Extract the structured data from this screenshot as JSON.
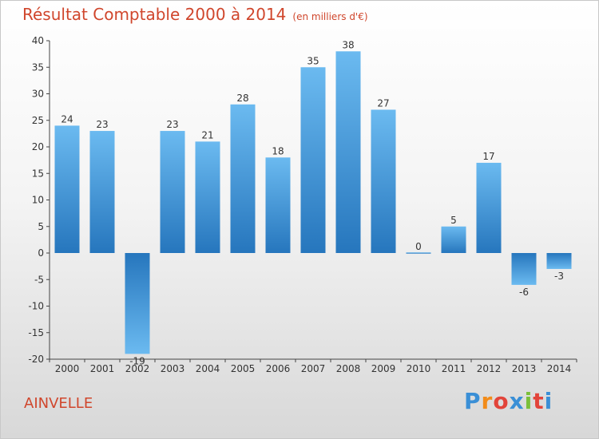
{
  "chart_data": {
    "type": "bar",
    "title": "Résultat Comptable 2000 à 2014",
    "subtitle": "(en milliers d'€)",
    "categories": [
      "2000",
      "2001",
      "2002",
      "2003",
      "2004",
      "2005",
      "2006",
      "2007",
      "2008",
      "2009",
      "2010",
      "2011",
      "2012",
      "2013",
      "2014"
    ],
    "values": [
      24,
      23,
      -19,
      23,
      21,
      28,
      18,
      35,
      38,
      27,
      0,
      5,
      17,
      -6,
      -3
    ],
    "ylim": [
      -20,
      40
    ],
    "yticks": [
      40,
      35,
      30,
      25,
      20,
      15,
      10,
      5,
      0,
      -5,
      -10,
      -15,
      -20
    ],
    "xlabel": "",
    "ylabel": "",
    "grid": false
  },
  "footer": {
    "commune": "AINVELLE",
    "logo": [
      "P",
      "r",
      "o",
      "x",
      "i",
      "t",
      "i"
    ]
  },
  "colors": {
    "title": "#d0462c",
    "bar_light": "#66b6ee",
    "bar_dark": "#2878bf"
  }
}
